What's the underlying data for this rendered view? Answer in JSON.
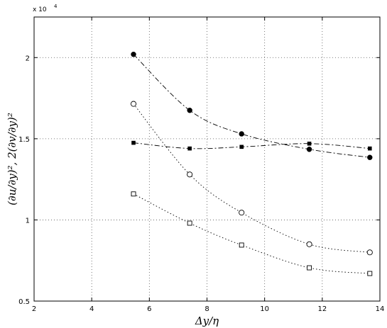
{
  "chart_data": {
    "type": "line",
    "title": "",
    "xlabel": "Δy/η",
    "ylabel": "(∂u/∂y)², 2(∂v/∂y)²",
    "y_exponent_label": "x 10",
    "y_exponent_power": "4",
    "xlim": [
      2,
      14
    ],
    "ylim": [
      0.5,
      2.25
    ],
    "x_ticks": [
      2,
      4,
      6,
      8,
      10,
      12,
      14
    ],
    "x_tick_labels": [
      "2",
      "4",
      "6",
      "8",
      "10",
      "12",
      "14"
    ],
    "y_ticks": [
      0.5,
      1,
      1.5,
      2
    ],
    "y_tick_labels": [
      "0.5",
      "1",
      "1.5",
      "2"
    ],
    "grid": true,
    "series": [
      {
        "marker": "filled-circle",
        "line_style": "dashdot",
        "x": [
          5.45,
          7.4,
          9.2,
          11.55,
          13.65
        ],
        "y": [
          2.02,
          1.675,
          1.53,
          1.435,
          1.385
        ]
      },
      {
        "marker": "filled-square",
        "line_style": "dashdot",
        "x": [
          5.45,
          7.4,
          9.2,
          11.55,
          13.65
        ],
        "y": [
          1.475,
          1.44,
          1.45,
          1.47,
          1.44
        ]
      },
      {
        "marker": "open-circle",
        "line_style": "dotted",
        "x": [
          5.45,
          7.4,
          9.2,
          11.55,
          13.65
        ],
        "y": [
          1.715,
          1.28,
          1.045,
          0.85,
          0.8
        ]
      },
      {
        "marker": "open-square",
        "line_style": "dotted",
        "x": [
          5.45,
          7.4,
          9.2,
          11.55,
          13.65
        ],
        "y": [
          1.16,
          0.98,
          0.845,
          0.705,
          0.67
        ]
      }
    ]
  }
}
